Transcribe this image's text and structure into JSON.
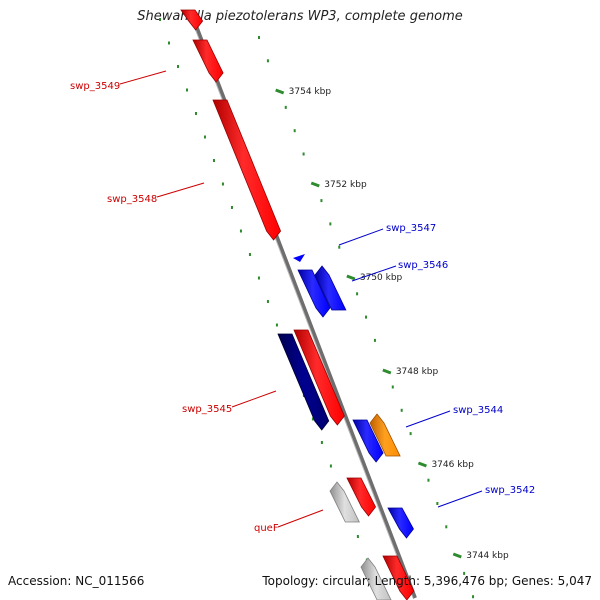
{
  "title": "Shewanella piezotolerans WP3, complete genome",
  "accession": "Accession: NC_011566",
  "topology": "Topology: circular; Length: 5,396,476 bp; Genes: 5,047",
  "colors": {
    "forward_gene": "#ff0000",
    "reverse_gene": "#0000ff",
    "selected_gene": "#000080",
    "orange_gene": "#ff8c00",
    "other_gene": "#c0c0c0",
    "backbone": "#808080",
    "ticks": "#2e8b2e"
  },
  "kbp_labels": [
    "3754 kbp",
    "3752 kbp",
    "3750 kbp",
    "3748 kbp",
    "3746 kbp",
    "3744 kbp"
  ],
  "gene_labels": [
    {
      "text": "swp_3549",
      "strand": "forward"
    },
    {
      "text": "swp_3548",
      "strand": "forward"
    },
    {
      "text": "swp_3547",
      "strand": "reverse"
    },
    {
      "text": "swp_3546",
      "strand": "reverse"
    },
    {
      "text": "swp_3545",
      "strand": "forward"
    },
    {
      "text": "swp_3544",
      "strand": "reverse"
    },
    {
      "text": "swp_3542",
      "strand": "reverse"
    },
    {
      "text": "queF",
      "strand": "forward"
    }
  ]
}
